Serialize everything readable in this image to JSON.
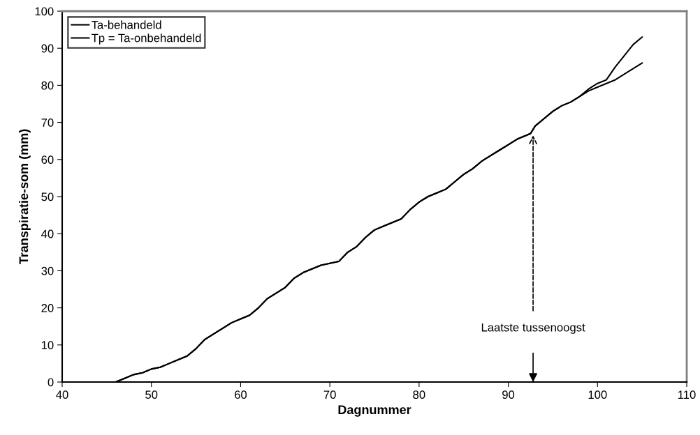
{
  "chart_data": {
    "type": "line",
    "xlabel": "Dagnummer",
    "ylabel": "Transpiratie-som (mm)",
    "xlim": [
      40,
      110
    ],
    "xticks": [
      40,
      50,
      60,
      70,
      80,
      90,
      100,
      110
    ],
    "ylim": [
      0,
      100
    ],
    "yticks": [
      0,
      10,
      20,
      30,
      40,
      50,
      60,
      70,
      80,
      90,
      100
    ],
    "grid": false,
    "legend": "top left",
    "marker": "none",
    "line_style": "solid",
    "series": [
      {
        "name": "Ta-behandeld",
        "color": "#000000",
        "x": [
          46,
          47,
          48,
          49,
          50,
          51,
          52,
          53,
          54,
          55,
          56,
          57,
          58,
          59,
          60,
          61,
          62,
          63,
          64,
          65,
          66,
          67,
          68,
          69,
          70,
          71,
          72,
          73,
          74,
          75,
          76,
          77,
          78,
          79,
          80,
          81,
          82,
          83,
          84,
          85,
          86,
          87,
          88,
          89,
          90,
          91,
          92,
          92.5,
          93,
          94,
          95,
          96,
          97,
          98,
          99,
          100,
          101,
          102,
          103,
          104,
          105
        ],
        "values": [
          0,
          1,
          2,
          2.5,
          3.5,
          4,
          5,
          6,
          7,
          9,
          11.5,
          13,
          14.5,
          16,
          17,
          18,
          20,
          22.5,
          24,
          25.5,
          28,
          29.5,
          30.5,
          31.5,
          32,
          32.5,
          35,
          36.5,
          39,
          41,
          42,
          43,
          44,
          46.5,
          48.5,
          50,
          51,
          52,
          54,
          56,
          57.5,
          59.5,
          61,
          62.5,
          64,
          65.5,
          66.5,
          67,
          69,
          71,
          73,
          74.5,
          75.5,
          77,
          78.5,
          79.5,
          80.5,
          81.5,
          83,
          84.5,
          86
        ]
      },
      {
        "name": "Tp = Ta-onbehandeld",
        "color": "#000000",
        "x": [
          46,
          47,
          48,
          49,
          50,
          51,
          52,
          53,
          54,
          55,
          56,
          57,
          58,
          59,
          60,
          61,
          62,
          63,
          64,
          65,
          66,
          67,
          68,
          69,
          70,
          71,
          72,
          73,
          74,
          75,
          76,
          77,
          78,
          79,
          80,
          81,
          82,
          83,
          84,
          85,
          86,
          87,
          88,
          89,
          90,
          91,
          92,
          92.5,
          93,
          94,
          95,
          96,
          97,
          98,
          99,
          100,
          101,
          102,
          103,
          104,
          105
        ],
        "values": [
          0,
          1,
          2,
          2.5,
          3.5,
          4,
          5,
          6,
          7,
          9,
          11.5,
          13,
          14.5,
          16,
          17,
          18,
          20,
          22.5,
          24,
          25.5,
          28,
          29.5,
          30.5,
          31.5,
          32,
          32.5,
          35,
          36.5,
          39,
          41,
          42,
          43,
          44,
          46.5,
          48.5,
          50,
          51,
          52,
          54,
          56,
          57.5,
          59.5,
          61,
          62.5,
          64,
          65.5,
          66.5,
          67,
          69,
          71,
          73,
          74.5,
          75.5,
          77,
          79,
          80.5,
          81.5,
          85,
          88,
          91,
          93
        ]
      }
    ],
    "annotations": [
      "Laatste tussenoogst"
    ]
  }
}
